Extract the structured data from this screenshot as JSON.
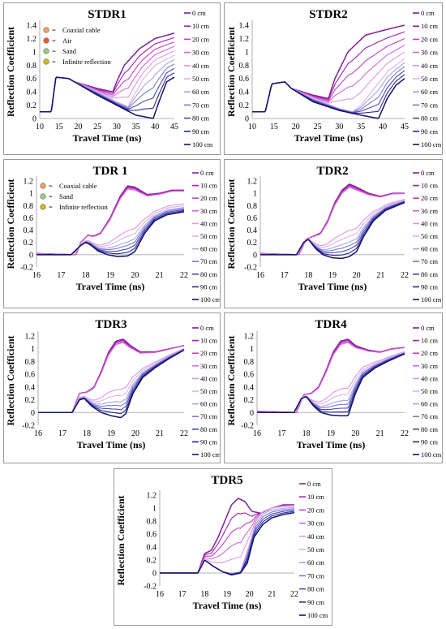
{
  "legend_labels": [
    "0 cm",
    "10 cm",
    "20 cm",
    "30 cm",
    "40 cm",
    "50 cm",
    "60 cm",
    "70 cm",
    "80 cm",
    "90 cm",
    "100 cm"
  ],
  "legend_colors": [
    "#7e1e9c",
    "#a21fb0",
    "#c53fc9",
    "#d46ad6",
    "#df96df",
    "#d9b3ea",
    "#a8a3e3",
    "#7b79d1",
    "#4b48b5",
    "#2a2891",
    "#14126b"
  ],
  "chart_data": [
    {
      "id": "stdr1",
      "type": "line",
      "title": "STDR1",
      "xlabel": "Travel Time (ns)",
      "ylabel": "Reflection Coefficient",
      "xlim": [
        10,
        45
      ],
      "ylim": [
        0,
        1.4
      ],
      "xticks": [
        10,
        15,
        20,
        25,
        30,
        35,
        40,
        45
      ],
      "yticks": [
        0,
        0.2,
        0.4,
        0.6,
        0.8,
        1,
        1.2,
        1.4
      ],
      "yticklabels": [
        "0",
        "0.2",
        "0.4",
        "0.6",
        "0.8",
        "1",
        "1.2",
        "1.4"
      ],
      "annotations": [
        {
          "label": "Coaxial cable",
          "color": "#f0a070"
        },
        {
          "label": "Air",
          "color": "#e85a3a"
        },
        {
          "label": "Sand",
          "color": "#8fd08f"
        },
        {
          "label": "Infinite reflection",
          "color": "#c8c020"
        }
      ],
      "series": [
        {
          "name": "0 cm",
          "x": [
            10,
            13,
            14.2,
            17.5,
            19,
            25,
            29,
            30,
            32,
            36,
            40,
            45
          ],
          "y": [
            0.1,
            0.1,
            0.62,
            0.6,
            0.55,
            0.45,
            0.4,
            0.55,
            0.8,
            1.05,
            1.2,
            1.28
          ]
        },
        {
          "name": "50 cm",
          "x": [
            10,
            13,
            14.2,
            17.5,
            19,
            25,
            30,
            33,
            34.5,
            37,
            40,
            45
          ],
          "y": [
            0.1,
            0.1,
            0.62,
            0.6,
            0.55,
            0.4,
            0.25,
            0.18,
            0.35,
            0.6,
            0.8,
            0.95
          ]
        },
        {
          "name": "100 cm",
          "x": [
            10,
            13,
            14.2,
            17.5,
            19,
            25,
            30,
            35,
            39.5,
            41,
            43,
            45
          ],
          "y": [
            0.1,
            0.1,
            0.62,
            0.6,
            0.55,
            0.35,
            0.2,
            0.05,
            0.0,
            0.25,
            0.55,
            0.62
          ]
        }
      ]
    },
    {
      "id": "stdr2",
      "type": "line",
      "title": "STDR2",
      "xlabel": "Travel Time (ns)",
      "ylabel": "Reflection Coefficient",
      "xlim": [
        10,
        45
      ],
      "ylim": [
        0,
        1.4
      ],
      "xticks": [
        10,
        15,
        20,
        25,
        30,
        35,
        40,
        45
      ],
      "yticks": [
        0,
        0.2,
        0.4,
        0.6,
        0.8,
        1,
        1.2,
        1.4
      ],
      "yticklabels": [
        "0",
        "0.2",
        "0.4",
        "0.6",
        "0.8",
        "1",
        "1.2",
        "1.4"
      ],
      "annotations": [],
      "series": [
        {
          "name": "0 cm",
          "x": [
            10,
            13,
            14.5,
            17.5,
            19,
            24,
            27.5,
            29,
            32,
            36,
            40,
            45
          ],
          "y": [
            0.1,
            0.1,
            0.52,
            0.55,
            0.45,
            0.35,
            0.3,
            0.6,
            1.0,
            1.25,
            1.32,
            1.4
          ]
        },
        {
          "name": "50 cm",
          "x": [
            10,
            13,
            14.5,
            17.5,
            19,
            24,
            30,
            33,
            35,
            38,
            41,
            45
          ],
          "y": [
            0.1,
            0.1,
            0.52,
            0.55,
            0.45,
            0.3,
            0.15,
            0.1,
            0.2,
            0.45,
            0.7,
            0.9
          ]
        },
        {
          "name": "100 cm",
          "x": [
            10,
            13,
            14.5,
            17.5,
            19,
            24,
            30,
            35,
            39,
            41,
            43,
            45
          ],
          "y": [
            0.1,
            0.1,
            0.52,
            0.55,
            0.45,
            0.25,
            0.12,
            0.05,
            0.0,
            0.3,
            0.5,
            0.6
          ]
        }
      ]
    },
    {
      "id": "tdr1",
      "type": "line",
      "title": "TDR 1",
      "xlabel": "Travel Time (ns)",
      "ylabel": "Reflection Coefficient",
      "xlim": [
        16,
        22
      ],
      "ylim": [
        -0.2,
        1.2
      ],
      "xticks": [
        16,
        17,
        18,
        19,
        20,
        21,
        22
      ],
      "yticks": [
        -0.2,
        0,
        0.2,
        0.4,
        0.6,
        0.8,
        1,
        1.2
      ],
      "yticklabels": [
        "-0.2",
        "0",
        "0.2",
        "0.4",
        "0.6",
        "0.8",
        "1",
        "1.2"
      ],
      "annotations": [
        {
          "label": "Coaxial cable",
          "color": "#f0a070"
        },
        {
          "label": "Sand",
          "color": "#8fd08f"
        },
        {
          "label": "Infinite reflection",
          "color": "#c8c020"
        }
      ],
      "series": [
        {
          "name": "0 cm",
          "x": [
            16,
            17.6,
            17.8,
            18.1,
            18.3,
            18.6,
            19,
            19.4,
            19.7,
            20,
            20.5,
            21,
            21.5,
            22
          ],
          "y": [
            0.02,
            0.0,
            0.2,
            0.32,
            0.3,
            0.35,
            0.6,
            0.95,
            1.12,
            1.1,
            0.98,
            1.0,
            1.05,
            1.05
          ]
        },
        {
          "name": "100 cm",
          "x": [
            16,
            17.4,
            17.8,
            18,
            18.2,
            18.5,
            18.9,
            19.3,
            19.7,
            20,
            20.4,
            20.8,
            21.3,
            22
          ],
          "y": [
            0.0,
            0.0,
            0.15,
            0.2,
            0.16,
            0.06,
            0.0,
            -0.03,
            -0.02,
            0.05,
            0.35,
            0.55,
            0.65,
            0.7
          ]
        }
      ]
    },
    {
      "id": "tdr2",
      "type": "line",
      "title": "TDR2",
      "xlabel": "Travel Time (ns)",
      "ylabel": "Reflection Coefficient",
      "xlim": [
        16,
        22
      ],
      "ylim": [
        -0.2,
        1.2
      ],
      "xticks": [
        16,
        17,
        18,
        19,
        20,
        21,
        22
      ],
      "yticks": [
        -0.2,
        0,
        0.2,
        0.4,
        0.6,
        0.8,
        1,
        1.2
      ],
      "yticklabels": [
        "-0.2",
        "0",
        "0.2",
        "0.4",
        "0.6",
        "0.8",
        "1",
        "1.2"
      ],
      "annotations": [],
      "series": [
        {
          "name": "0 cm",
          "x": [
            16,
            17.6,
            17.9,
            18.2,
            18.5,
            18.8,
            19.1,
            19.4,
            19.7,
            20,
            20.5,
            21,
            21.5,
            22
          ],
          "y": [
            0.02,
            0.0,
            0.25,
            0.3,
            0.35,
            0.55,
            0.85,
            1.05,
            1.15,
            1.1,
            1.0,
            0.95,
            1.0,
            1.0
          ]
        },
        {
          "name": "100 cm",
          "x": [
            16,
            17.5,
            17.8,
            18,
            18.3,
            18.6,
            19,
            19.4,
            19.7,
            20,
            20.3,
            20.7,
            21.2,
            22
          ],
          "y": [
            0.0,
            0.0,
            0.2,
            0.25,
            0.1,
            0.0,
            -0.05,
            -0.06,
            -0.03,
            0.05,
            0.3,
            0.55,
            0.72,
            0.85
          ]
        }
      ]
    },
    {
      "id": "tdr3",
      "type": "line",
      "title": "TDR3",
      "xlabel": "Travel Time (ns)",
      "ylabel": "Reflection Coefficient",
      "xlim": [
        16,
        22
      ],
      "ylim": [
        -0.2,
        1.2
      ],
      "xticks": [
        16,
        17,
        18,
        19,
        20,
        21,
        22
      ],
      "yticks": [
        -0.2,
        0,
        0.2,
        0.4,
        0.6,
        0.8,
        1,
        1.2
      ],
      "yticklabels": [
        "-0.2",
        "0",
        "0.2",
        "0.4",
        "0.6",
        "0.8",
        "1",
        "1.2"
      ],
      "annotations": [],
      "series": [
        {
          "name": "0 cm",
          "x": [
            16,
            17.4,
            17.7,
            18,
            18.3,
            18.6,
            18.9,
            19.2,
            19.5,
            19.8,
            20.2,
            20.8,
            21.4,
            22
          ],
          "y": [
            0.0,
            0.0,
            0.3,
            0.32,
            0.4,
            0.65,
            0.95,
            1.12,
            1.15,
            1.05,
            0.95,
            0.95,
            1.0,
            1.05
          ]
        },
        {
          "name": "100 cm",
          "x": [
            16,
            17.4,
            17.7,
            17.9,
            18.2,
            18.6,
            19,
            19.4,
            19.6,
            19.9,
            20.3,
            20.8,
            21.4,
            22
          ],
          "y": [
            0.0,
            0.0,
            0.2,
            0.22,
            0.1,
            0.0,
            -0.05,
            -0.08,
            -0.02,
            0.3,
            0.55,
            0.7,
            0.85,
            0.98
          ]
        }
      ]
    },
    {
      "id": "tdr4",
      "type": "line",
      "title": "TDR4",
      "xlabel": "Travel Time (ns)",
      "ylabel": "Reflection Coefficient",
      "xlim": [
        16,
        22
      ],
      "ylim": [
        -0.2,
        1.2
      ],
      "xticks": [
        16,
        17,
        18,
        19,
        20,
        21,
        22
      ],
      "yticks": [
        -0.2,
        0,
        0.2,
        0.4,
        0.6,
        0.8,
        1,
        1.2
      ],
      "yticklabels": [
        "-0.2",
        "0",
        "0.2",
        "0.4",
        "0.6",
        "0.8",
        "1",
        "1.2"
      ],
      "annotations": [],
      "series": [
        {
          "name": "0 cm",
          "x": [
            16,
            17.6,
            17.9,
            18.2,
            18.5,
            18.8,
            19.1,
            19.4,
            19.7,
            20,
            20.5,
            21,
            21.5,
            22
          ],
          "y": [
            0.02,
            0.0,
            0.28,
            0.3,
            0.4,
            0.65,
            0.95,
            1.12,
            1.15,
            1.05,
            0.98,
            0.95,
            1.0,
            1.02
          ]
        },
        {
          "name": "100 cm",
          "x": [
            16,
            17.5,
            17.8,
            18,
            18.3,
            18.6,
            19,
            19.4,
            19.7,
            20,
            20.3,
            20.8,
            21.3,
            22
          ],
          "y": [
            0.0,
            0.0,
            0.22,
            0.25,
            0.1,
            0.0,
            -0.04,
            -0.05,
            -0.05,
            0.3,
            0.55,
            0.7,
            0.8,
            0.92
          ]
        }
      ]
    },
    {
      "id": "tdr5",
      "type": "line",
      "title": "TDR5",
      "xlabel": "Travel Time (ns)",
      "ylabel": "Reflection Coefficient",
      "xlim": [
        16,
        22
      ],
      "ylim": [
        -0.2,
        1.2
      ],
      "xticks": [
        16,
        17,
        18,
        19,
        20,
        21,
        22
      ],
      "yticks": [
        -0.2,
        0,
        0.2,
        0.4,
        0.6,
        0.8,
        1,
        1.2
      ],
      "yticklabels": [
        "-0.2",
        "0",
        "0.2",
        "0.4",
        "0.6",
        "0.8",
        "1",
        "1.2"
      ],
      "annotations": [],
      "series": [
        {
          "name": "0 cm",
          "x": [
            16,
            17.7,
            18,
            18.3,
            18.6,
            18.9,
            19.2,
            19.5,
            19.8,
            20.1,
            20.5,
            21,
            21.5,
            22
          ],
          "y": [
            0.0,
            0.0,
            0.3,
            0.35,
            0.55,
            0.8,
            1.05,
            1.15,
            1.1,
            0.95,
            0.92,
            1.0,
            1.05,
            1.05
          ]
        },
        {
          "name": "50 cm",
          "x": [
            16,
            17.7,
            18,
            18.4,
            18.8,
            19.2,
            19.6,
            20,
            20.3,
            20.6,
            21,
            21.5,
            22
          ],
          "y": [
            0.0,
            0.0,
            0.2,
            0.1,
            0.02,
            0.0,
            0.02,
            0.45,
            0.8,
            0.95,
            1.0,
            1.02,
            1.03
          ]
        },
        {
          "name": "100 cm",
          "x": [
            16,
            17.7,
            18,
            18.4,
            18.8,
            19.2,
            19.6,
            19.9,
            20.2,
            20.6,
            21,
            21.5,
            22
          ],
          "y": [
            0.0,
            0.0,
            0.2,
            0.1,
            0.02,
            -0.03,
            0.0,
            0.15,
            0.55,
            0.75,
            0.85,
            0.9,
            0.93
          ]
        }
      ]
    }
  ]
}
